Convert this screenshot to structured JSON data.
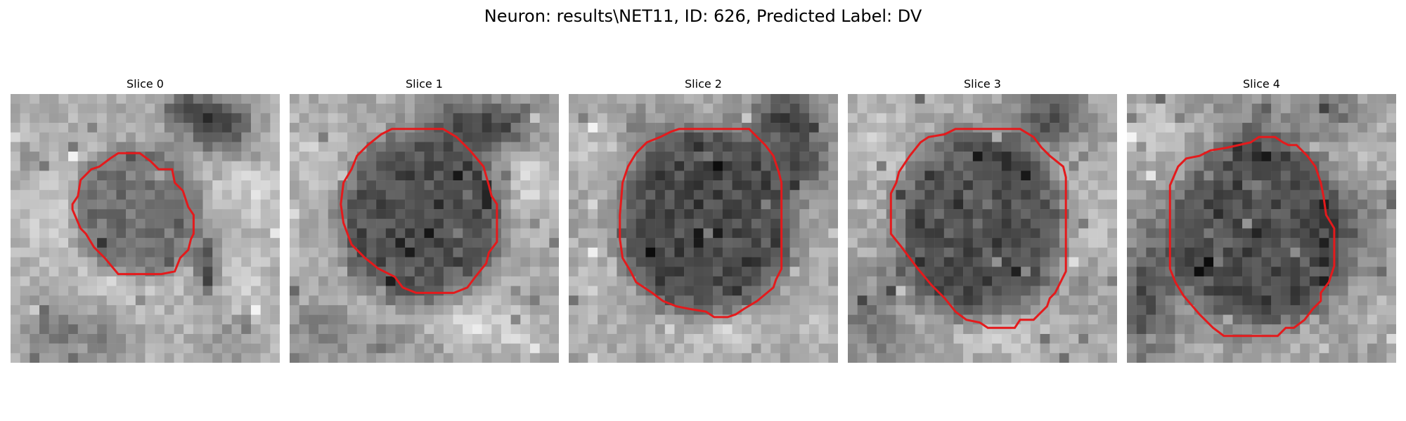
{
  "suptitle": "Neuron: results\\NET11, ID: 626, Predicted Label: DV",
  "colors": {
    "background": "#ffffff",
    "contour": "#e41a1c",
    "image_colormap": "grayscale"
  },
  "slices": [
    {
      "title": "Slice 0",
      "image_content": "grayscale microscopy crop with a small dark nucleus outlined",
      "contour_color": "#e41a1c"
    },
    {
      "title": "Slice 1",
      "image_content": "grayscale microscopy crop with a larger dark round neuron outlined",
      "contour_color": "#e41a1c"
    },
    {
      "title": "Slice 2",
      "image_content": "grayscale microscopy crop with a large dark round neuron outlined",
      "contour_color": "#e41a1c"
    },
    {
      "title": "Slice 3",
      "image_content": "grayscale microscopy crop with a large dark round neuron outlined",
      "contour_color": "#e41a1c"
    },
    {
      "title": "Slice 4",
      "image_content": "grayscale microscopy crop with an elongated dark neuron outlined",
      "contour_color": "#e41a1c"
    }
  ]
}
